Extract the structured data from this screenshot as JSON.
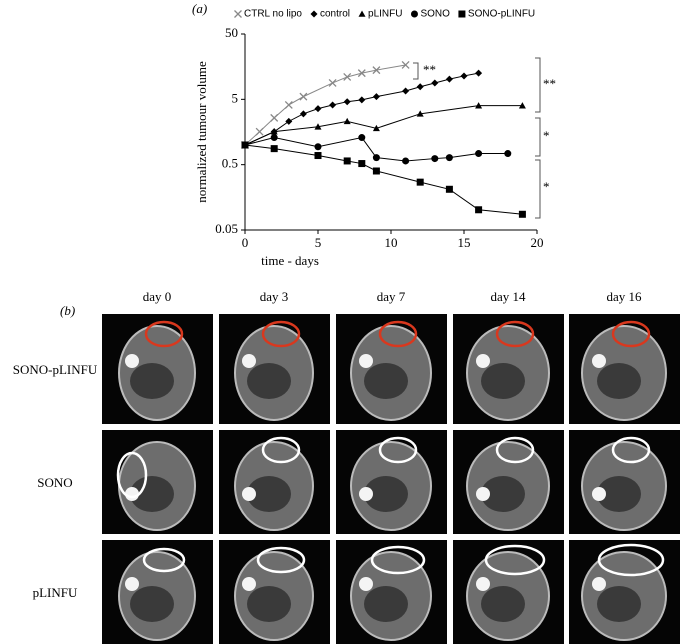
{
  "chart_data": {
    "type": "line",
    "panel_label": "(a)",
    "x_label": "time - days",
    "y_label": "normalized tumour volume",
    "xlim": [
      0,
      20
    ],
    "ylim": [
      0.05,
      50
    ],
    "log_y": true,
    "xticks": [
      0,
      5,
      10,
      15,
      20
    ],
    "yticks": [
      0.05,
      0.5,
      5,
      50
    ],
    "legend": "top",
    "series": [
      {
        "name": "CTRL no lipo",
        "marker": "x",
        "color": "#888888",
        "x": [
          0,
          1,
          2,
          3,
          4,
          6,
          7,
          8,
          9,
          11
        ],
        "values": [
          1,
          1.6,
          2.6,
          4.1,
          5.5,
          8.9,
          11,
          12.6,
          14,
          16.8
        ]
      },
      {
        "name": "control",
        "marker": "diamond",
        "color": "#000000",
        "x": [
          0,
          2,
          3,
          4,
          5,
          6,
          7,
          8,
          9,
          11,
          12,
          13,
          14,
          15,
          16
        ],
        "values": [
          1,
          1.6,
          2.3,
          3,
          3.6,
          4.1,
          4.6,
          4.9,
          5.5,
          6.7,
          7.8,
          8.9,
          10.2,
          11.4,
          12.6
        ]
      },
      {
        "name": "pLINFU",
        "marker": "triangle",
        "color": "#000000",
        "x": [
          0,
          2,
          5,
          7,
          9,
          12,
          16,
          19
        ],
        "values": [
          1,
          1.6,
          1.9,
          2.3,
          1.8,
          3,
          4,
          4
        ]
      },
      {
        "name": "SONO",
        "marker": "circle",
        "color": "#000000",
        "x": [
          0,
          2,
          5,
          8,
          9,
          11,
          13,
          14,
          16,
          18
        ],
        "values": [
          1,
          1.3,
          0.94,
          1.3,
          0.64,
          0.57,
          0.62,
          0.64,
          0.74,
          0.74
        ]
      },
      {
        "name": "SONO-pLINFU",
        "marker": "square",
        "color": "#000000",
        "x": [
          0,
          2,
          5,
          7,
          8,
          9,
          12,
          14,
          16,
          19
        ],
        "values": [
          1,
          0.88,
          0.69,
          0.57,
          0.52,
          0.4,
          0.27,
          0.21,
          0.102,
          0.087
        ]
      }
    ],
    "annotations": [
      "**",
      "**",
      "*",
      "*"
    ]
  },
  "panel_b": {
    "label": "(b)",
    "columns": [
      "day 0",
      "day 3",
      "day 7",
      "day 14",
      "day 16"
    ],
    "rows": [
      "SONO-pLINFU",
      "SONO",
      "pLINFU"
    ]
  }
}
